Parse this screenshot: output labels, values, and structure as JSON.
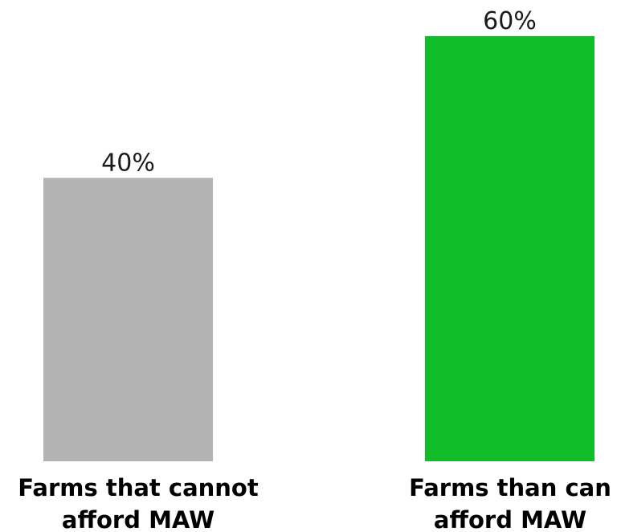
{
  "chart_data": {
    "type": "bar",
    "categories": [
      [
        "Farms that cannot",
        "afford MAW"
      ],
      [
        "Farms than can",
        "afford MAW"
      ]
    ],
    "values": [
      40,
      60
    ],
    "value_labels": [
      "40%",
      "60%"
    ],
    "colors": [
      "#b3b3b3",
      "#10bd29"
    ],
    "ylim": [
      0,
      60
    ],
    "grid": false,
    "legend": false
  }
}
